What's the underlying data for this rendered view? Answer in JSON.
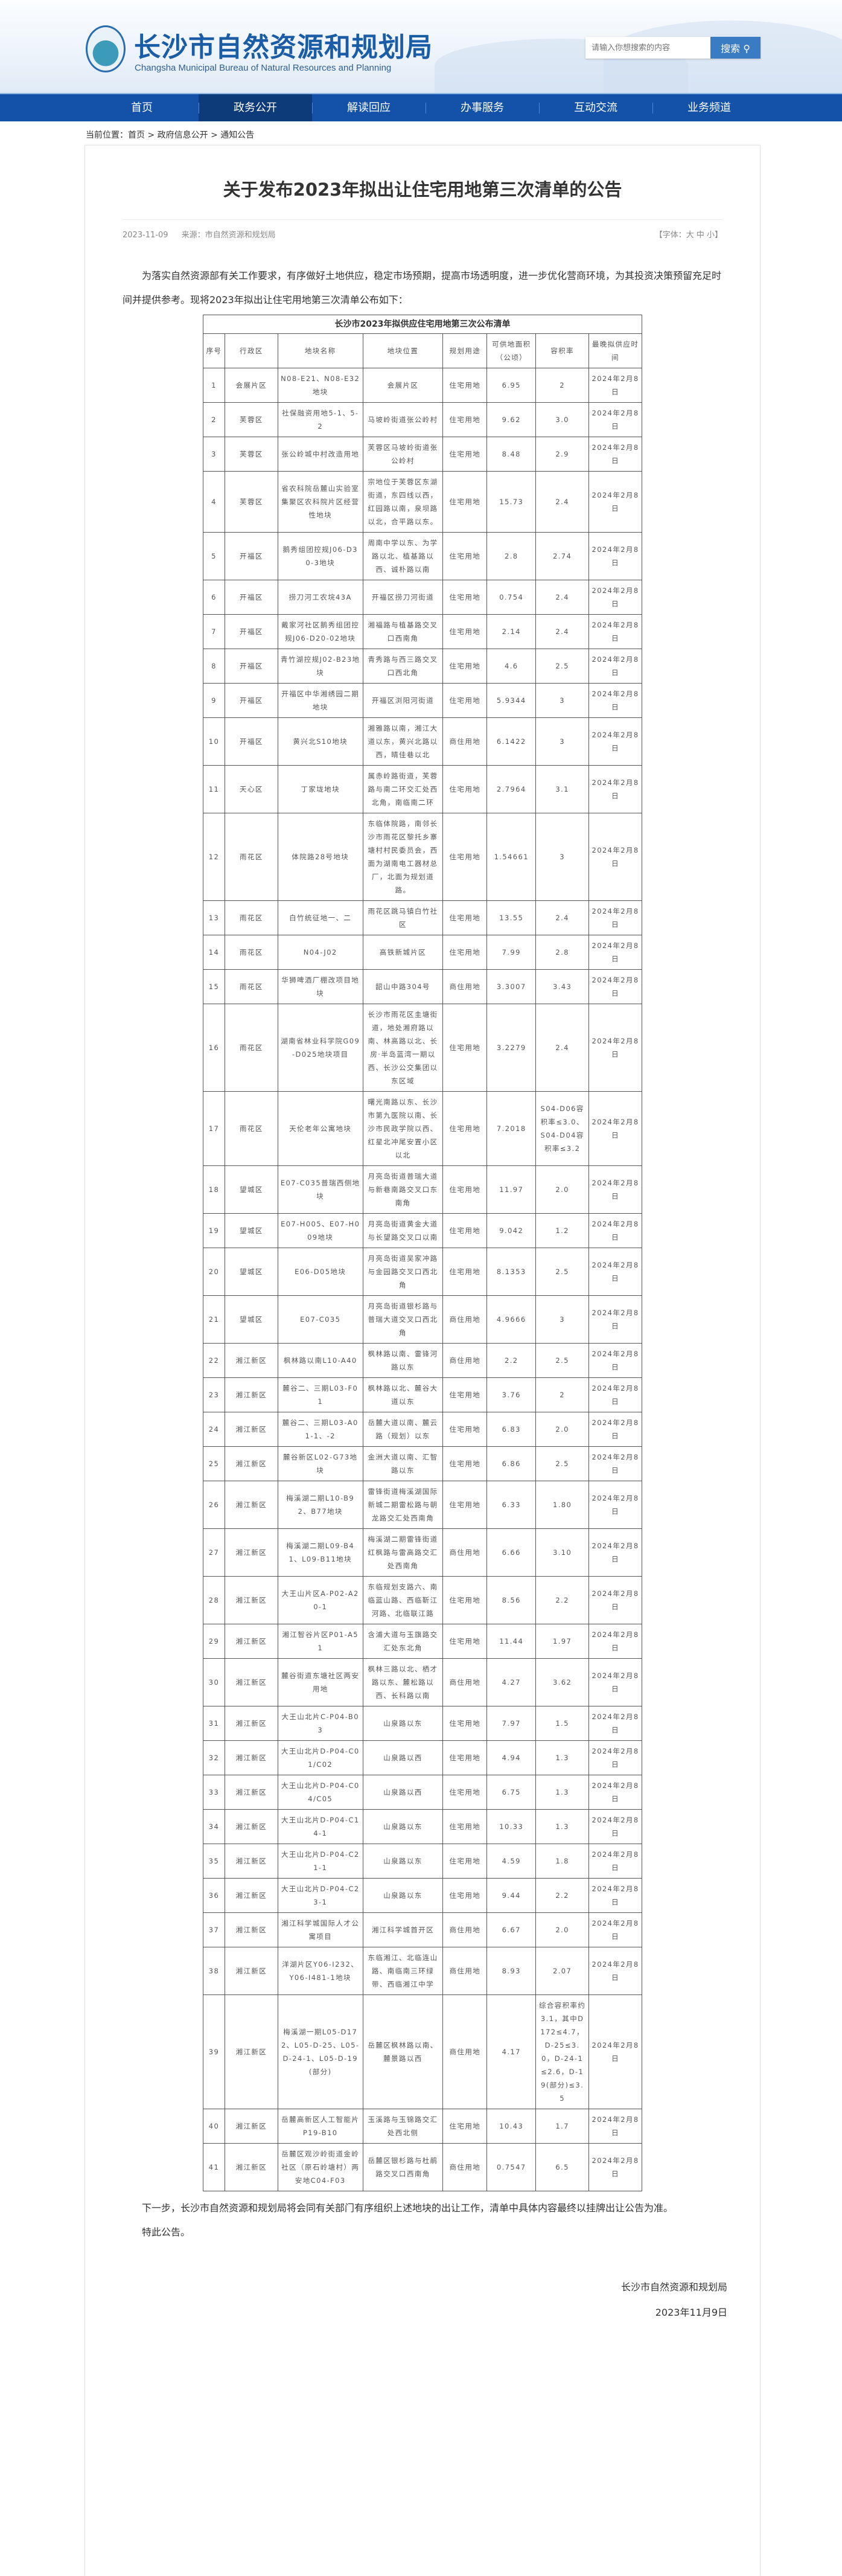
{
  "header": {
    "site_title": "长沙市自然资源和规划局",
    "site_title_en": "Changsha Municipal Bureau of Natural Resources and Planning",
    "search_placeholder": "请输入你想搜索的内容",
    "search_button": "搜索"
  },
  "nav": {
    "items": [
      "首页",
      "政务公开",
      "解读回应",
      "办事服务",
      "互动交流",
      "业务频道"
    ],
    "active": 1
  },
  "breadcrumb": {
    "label": "当前位置：",
    "items": [
      "首页",
      "政府信息公开",
      "通知公告"
    ],
    "sep": " > "
  },
  "article": {
    "title": "关于发布2023年拟出让住宅用地第三次清单的公告",
    "date": "2023-11-09",
    "source": "来源：市自然资源和规划局",
    "font_size": "【字体：大 中 小】",
    "intro": "为落实自然资源部有关工作要求，有序做好土地供应，稳定市场预期，提高市场透明度，进一步优化营商环境，为其投资决策预留充足时间并提供参考。现将2023年拟出让住宅用地第三次清单公布如下：",
    "closing": "下一步，长沙市自然资源和规划局将会同有关部门有序组织上述地块的出让工作，清单中具体内容最终以挂牌出让公告为准。",
    "closing2": "特此公告。",
    "signature": "长沙市自然资源和规划局",
    "sign_date": "2023年11月9日"
  },
  "table": {
    "caption": "长沙市2023年拟供应住宅用地第三次公布清单",
    "columns": [
      "序号",
      "行政区",
      "地块名称",
      "地块位置",
      "规划用途",
      "可供地面积（公顷）",
      "容积率",
      "最晚拟供应时间"
    ],
    "rows": [
      [
        "1",
        "会展片区",
        "N08-E21、N08-E32地块",
        "会展片区",
        "住宅用地",
        "6.95",
        "2",
        "2024年2月8日"
      ],
      [
        "2",
        "芙蓉区",
        "社保融资用地5-1、5-2",
        "马坡岭街道张公岭村",
        "住宅用地",
        "9.62",
        "3.0",
        "2024年2月8日"
      ],
      [
        "3",
        "芙蓉区",
        "张公岭城中村改造用地",
        "芙蓉区马坡岭街道张公岭村",
        "住宅用地",
        "8.48",
        "2.9",
        "2024年2月8日"
      ],
      [
        "4",
        "芙蓉区",
        "省农科院岳麓山实验室集聚区农科院片区经营性地块",
        "宗地位于芙蓉区东湖街道，东四线以西，红园路以南，泉坝路以北，合平路以东。",
        "住宅用地",
        "15.73",
        "2.4",
        "2024年2月8日"
      ],
      [
        "5",
        "开福区",
        "鹅秀组团控规J06-D30-3地块",
        "周南中学以东、为学路以北、植基路以西、诚朴路以南",
        "住宅用地",
        "2.8",
        "2.74",
        "2024年2月8日"
      ],
      [
        "6",
        "开福区",
        "捞刀河工农垸43A",
        "开福区捞刀河街道",
        "住宅用地",
        "0.754",
        "2.4",
        "2024年2月8日"
      ],
      [
        "7",
        "开福区",
        "戴家河社区鹅秀组团控规J06-D20-02地块",
        "湘福路与植基路交叉口西南角",
        "住宅用地",
        "2.14",
        "2.4",
        "2024年2月8日"
      ],
      [
        "8",
        "开福区",
        "青竹湖控规J02-B23地块",
        "青秀路与西三路交叉口西北角",
        "住宅用地",
        "4.6",
        "2.5",
        "2024年2月8日"
      ],
      [
        "9",
        "开福区",
        "开福区中华湘绣园二期地块",
        "开福区浏阳河街道",
        "住宅用地",
        "5.9344",
        "3",
        "2024年2月8日"
      ],
      [
        "10",
        "开福区",
        "黄兴北S10地块",
        "湘雅路以南，湘江大道以东，黄兴北路以西，晴佳巷以北",
        "商住用地",
        "6.1422",
        "3",
        "2024年2月8日"
      ],
      [
        "11",
        "天心区",
        "丁家垅地块",
        "属赤岭路街道，芙蓉路与南二环交汇处西北角，南临南二环",
        "住宅用地",
        "2.7964",
        "3.1",
        "2024年2月8日"
      ],
      [
        "12",
        "雨花区",
        "体院路28号地块",
        "东临体院路，南邻长沙市雨花区黎托乡寨塘村村民委员会，西面为湖南电工器材总厂，北面为规划道路。",
        "住宅用地",
        "1.54661",
        "3",
        "2024年2月8日"
      ],
      [
        "13",
        "雨花区",
        "白竹统征地一、二",
        "雨花区跳马镇白竹社区",
        "住宅用地",
        "13.55",
        "2.4",
        "2024年2月8日"
      ],
      [
        "14",
        "雨花区",
        "N04-J02",
        "高铁新城片区",
        "住宅用地",
        "7.99",
        "2.8",
        "2024年2月8日"
      ],
      [
        "15",
        "雨花区",
        "华狮啤酒厂棚改项目地块",
        "韶山中路304号",
        "商住用地",
        "3.3007",
        "3.43",
        "2024年2月8日"
      ],
      [
        "16",
        "雨花区",
        "湖南省林业科学院G09-D025地块项目",
        "长沙市雨花区圭塘街道，地处湘府路以南、林高路以北、长房·半岛蓝湾一期以西、长沙公交集团以东区域",
        "住宅用地",
        "3.2279",
        "2.4",
        "2024年2月8日"
      ],
      [
        "17",
        "雨花区",
        "天伦老年公寓地块",
        "曙光南路以东、长沙市第九医院以南、长沙市民政学院以西、红星北冲尾安置小区以北",
        "住宅用地",
        "7.2018",
        "S04-D06容积率≤3.0、S04-D04容积率≤3.2",
        "2024年2月8日"
      ],
      [
        "18",
        "望城区",
        "E07-C035普瑞西侧地块",
        "月亮岛街道普瑞大道与新巷南路交叉口东南角",
        "住宅用地",
        "11.97",
        "2.0",
        "2024年2月8日"
      ],
      [
        "19",
        "望城区",
        "E07-H005、E07-H009地块",
        "月亮岛街道黄金大道与长望路交叉口以南",
        "住宅用地",
        "9.042",
        "1.2",
        "2024年2月8日"
      ],
      [
        "20",
        "望城区",
        "E06-D05地块",
        "月亮岛街道吴家冲路与金园路交叉口西北角",
        "住宅用地",
        "8.1353",
        "2.5",
        "2024年2月8日"
      ],
      [
        "21",
        "望城区",
        "E07-C035",
        "月亮岛街道银杉路与普瑞大道交叉口西北角",
        "商住用地",
        "4.9666",
        "3",
        "2024年2月8日"
      ],
      [
        "22",
        "湘江新区",
        "枫林路以南L10-A40",
        "枫林路以南、雷锋河路以东",
        "商住用地",
        "2.2",
        "2.5",
        "2024年2月8日"
      ],
      [
        "23",
        "湘江新区",
        "麓谷二、三期L03-F01",
        "枫林路以北、麓谷大道以东",
        "住宅用地",
        "3.76",
        "2",
        "2024年2月8日"
      ],
      [
        "24",
        "湘江新区",
        "麓谷二、三期L03-A01-1、-2",
        "岳麓大道以南、麓云路（规划）以东",
        "住宅用地",
        "6.83",
        "2.0",
        "2024年2月8日"
      ],
      [
        "25",
        "湘江新区",
        "麓谷新区L02-G73地块",
        "金洲大道以南、汇智路以东",
        "住宅用地",
        "6.86",
        "2.5",
        "2024年2月8日"
      ],
      [
        "26",
        "湘江新区",
        "梅溪湖二期L10-B92、B77地块",
        "雷锋街道梅溪湖国际新城二期雷松路与朝龙路交汇处西南角",
        "住宅用地",
        "6.33",
        "1.80",
        "2024年2月8日"
      ],
      [
        "27",
        "湘江新区",
        "梅溪湖二期L09-B41、L09-B11地块",
        "梅溪湖二期雷锋街道红枫路与雷高路交汇处西南角",
        "商住用地",
        "6.66",
        "3.10",
        "2024年2月8日"
      ],
      [
        "28",
        "湘江新区",
        "大王山片区A-P02-A20-1",
        "东临规划支路六、南临蓝山路、西临靳江河路、北临联江路",
        "住宅用地",
        "8.56",
        "2.2",
        "2024年2月8日"
      ],
      [
        "29",
        "湘江新区",
        "湘江智谷片区P01-A51",
        "含浦大道与玉旗路交汇处东北角",
        "住宅用地",
        "11.44",
        "1.97",
        "2024年2月8日"
      ],
      [
        "30",
        "湘江新区",
        "麓谷街道东塘社区两安用地",
        "枫林三路以北、栖才路以东、麓松路以西、长科路以南",
        "商住用地",
        "4.27",
        "3.62",
        "2024年2月8日"
      ],
      [
        "31",
        "湘江新区",
        "大王山北片C-P04-B03",
        "山泉路以东",
        "住宅用地",
        "7.97",
        "1.5",
        "2024年2月8日"
      ],
      [
        "32",
        "湘江新区",
        "大王山北片D-P04-C01/C02",
        "山泉路以西",
        "住宅用地",
        "4.94",
        "1.3",
        "2024年2月8日"
      ],
      [
        "33",
        "湘江新区",
        "大王山北片D-P04-C04/C05",
        "山泉路以西",
        "住宅用地",
        "6.75",
        "1.3",
        "2024年2月8日"
      ],
      [
        "34",
        "湘江新区",
        "大王山北片D-P04-C14-1",
        "山泉路以东",
        "住宅用地",
        "10.33",
        "1.3",
        "2024年2月8日"
      ],
      [
        "35",
        "湘江新区",
        "大王山北片D-P04-C21-1",
        "山泉路以东",
        "住宅用地",
        "4.59",
        "1.8",
        "2024年2月8日"
      ],
      [
        "36",
        "湘江新区",
        "大王山北片D-P04-C23-1",
        "山泉路以东",
        "住宅用地",
        "9.44",
        "2.2",
        "2024年2月8日"
      ],
      [
        "37",
        "湘江新区",
        "湘江科学城国际人才公寓项目",
        "湘江科学城首开区",
        "商住用地",
        "6.67",
        "2.0",
        "2024年2月8日"
      ],
      [
        "38",
        "湘江新区",
        "洋湖片区Y06-I232、Y06-I481-1地块",
        "东临湘江、北临连山路、南临南三环绿带、西临湘江中学",
        "商住用地",
        "8.93",
        "2.07",
        "2024年2月8日"
      ],
      [
        "39",
        "湘江新区",
        "梅溪湖一期L05-D172、L05-D-25、L05-D-24-1、L05-D-19(部分)",
        "岳麓区枫林路以南、麓景路以西",
        "商住用地",
        "4.17",
        "综合容积率约3.1，其中D172≤4.7，D-25≤3.0，D-24-1≤2.6，D-19(部分)≤3.5",
        "2024年2月8日"
      ],
      [
        "40",
        "湘江新区",
        "岳麓高新区人工智能片P19-B10",
        "玉溪路与玉锦路交汇处西北侧",
        "住宅用地",
        "10.43",
        "1.7",
        "2024年2月8日"
      ],
      [
        "41",
        "湘江新区",
        "岳麓区观沙岭街道金岭社区（原石岭塘村）两安地C04-F03",
        "岳麓区银杉路与杜鹃路交叉口西南角",
        "商住用地",
        "0.7547",
        "6.5",
        "2024年2月8日"
      ]
    ]
  },
  "colors": {
    "brand": "#1a5ca6",
    "nav": "#1352a8",
    "nav_active": "#0d3a79",
    "search_button": "#3a7cc3"
  }
}
